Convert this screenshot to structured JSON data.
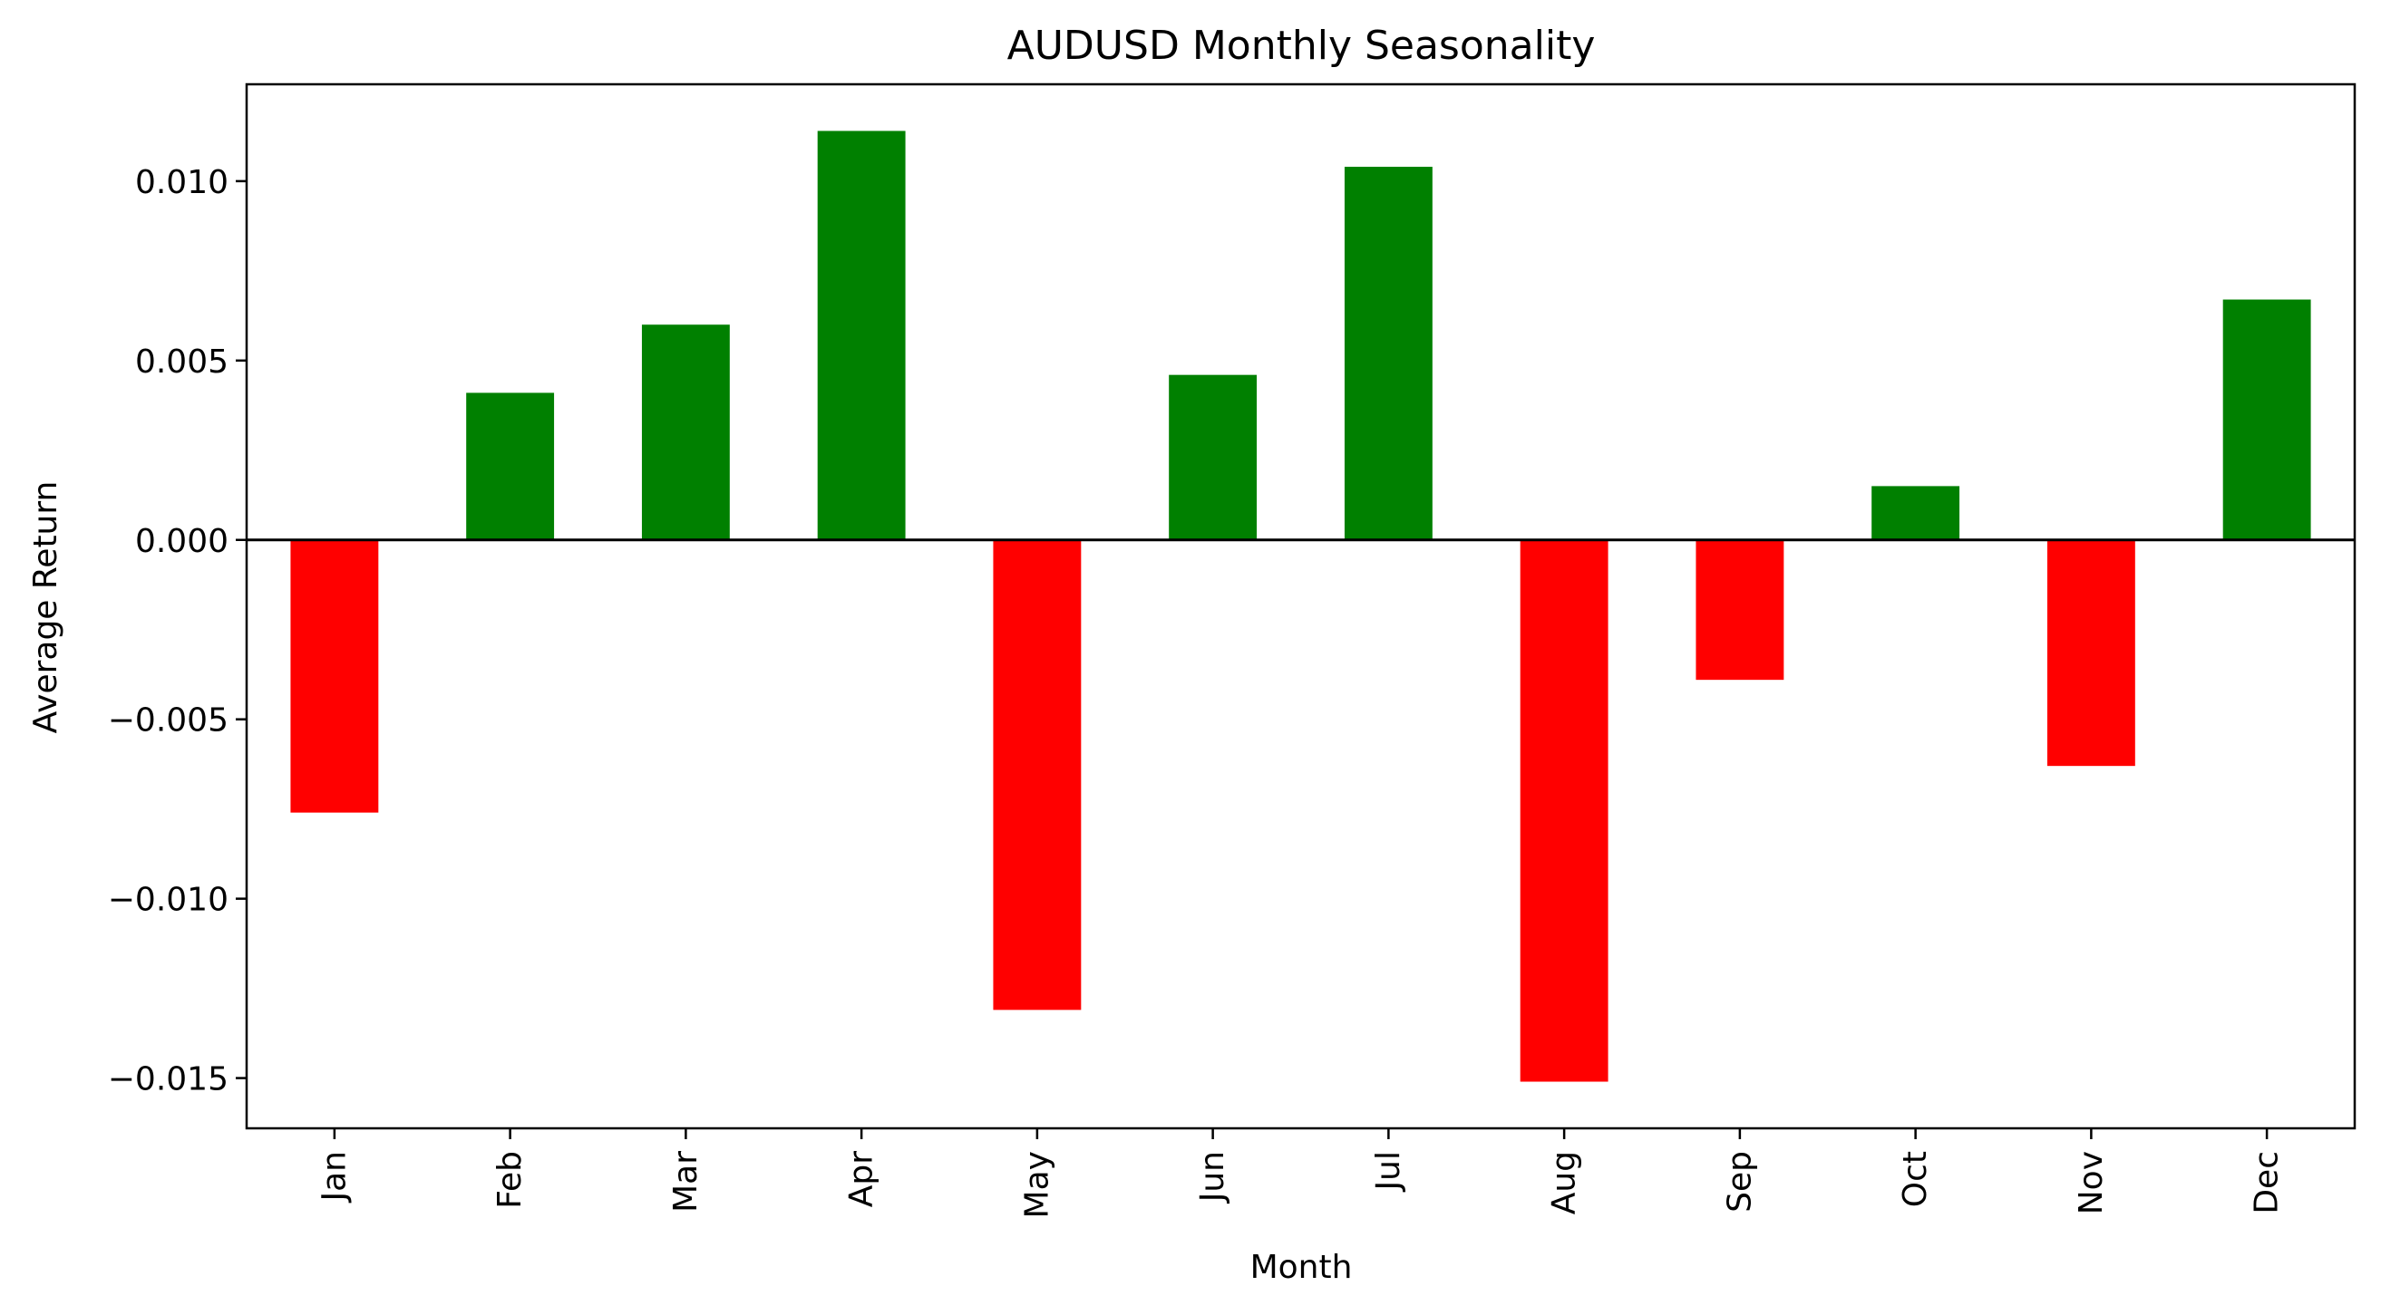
{
  "chart_data": {
    "type": "bar",
    "title": "AUDUSD Monthly Seasonality",
    "xlabel": "Month",
    "ylabel": "Average Return",
    "categories": [
      "Jan",
      "Feb",
      "Mar",
      "Apr",
      "May",
      "Jun",
      "Jul",
      "Aug",
      "Sep",
      "Oct",
      "Nov",
      "Dec"
    ],
    "values": [
      -0.0076,
      0.0041,
      0.006,
      0.0114,
      -0.0131,
      0.0046,
      0.0104,
      -0.0151,
      -0.0039,
      0.0015,
      -0.0063,
      0.0067
    ],
    "ylim": [
      -0.0164,
      0.0127
    ],
    "yticks": [
      0.01,
      0.005,
      0.0,
      -0.005,
      -0.01,
      -0.015
    ],
    "ytick_labels": [
      "0.010",
      "0.005",
      "0.000",
      "−0.005",
      "−0.010",
      "−0.015"
    ],
    "grid": false,
    "zero_line": true,
    "colors": {
      "positive": "#008000",
      "negative": "#ff0000",
      "axis": "#000000",
      "background": "#ffffff"
    }
  }
}
